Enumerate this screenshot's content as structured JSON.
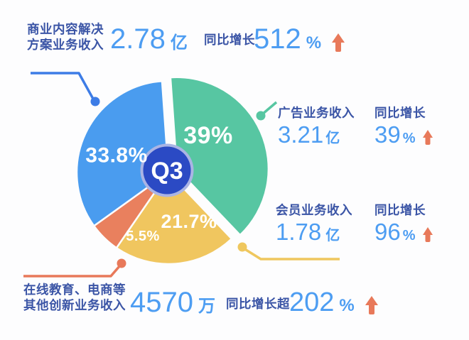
{
  "chart_data": {
    "type": "pie",
    "center_label": "Q3",
    "start_angle_deg": -4,
    "explode_slice_index": 0,
    "slices": [
      {
        "name": "广告业务收入",
        "value": 39,
        "color": "#57c6a2"
      },
      {
        "name": "会员业务收入",
        "value": 21.7,
        "color": "#f0c65f"
      },
      {
        "name": "在线教育、电商等其他创新业务收入",
        "value": 5.5,
        "color": "#e9805e"
      },
      {
        "name": "商业内容解决方案业务收入",
        "value": 33.8,
        "color": "#4a9cef"
      }
    ]
  },
  "callouts": {
    "solutions": {
      "label_line1": "商业内容解决",
      "label_line2": "方案业务收入",
      "value": "2.78",
      "unit": "亿",
      "growth_label": "同比增长",
      "growth_value": "512",
      "growth_unit": "%"
    },
    "ads": {
      "label": "广告业务收入",
      "value": "3.21",
      "unit": "亿",
      "growth_label": "同比增长",
      "growth_value": "39",
      "growth_unit": "%"
    },
    "membership": {
      "label": "会员业务收入",
      "value": "1.78",
      "unit": "亿",
      "growth_label": "同比增长",
      "growth_value": "96",
      "growth_unit": "%"
    },
    "innovation": {
      "label_line1": "在线教育、电商等",
      "label_line2": "其他创新业务收入",
      "value": "4570",
      "unit": "万",
      "growth_label": "同比增长超",
      "growth_value": "202",
      "growth_unit": "%"
    }
  },
  "colors": {
    "navy": "#3b55a6",
    "number_blue": "#4d9df2",
    "arrow_orange": "#e8795a",
    "connector_blue": "#3d7ce6",
    "connector_green": "#57c6a2",
    "connector_yellow": "#efc75e",
    "connector_orange": "#e8795a",
    "center_circle": "#2b4ac4",
    "center_ring": "#aab4e4"
  }
}
